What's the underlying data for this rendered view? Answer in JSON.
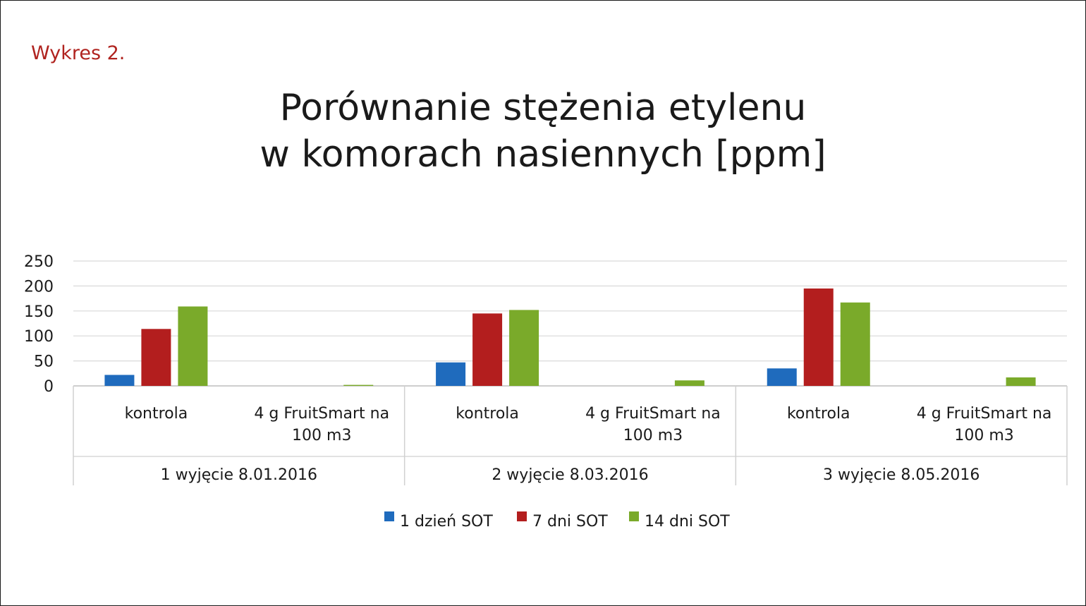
{
  "figure_label": "Wykres 2.",
  "chart_data": {
    "type": "bar",
    "title_lines": [
      "Porównanie stężenia etylenu",
      "w komorach nasiennych [ppm]"
    ],
    "xlabel": "",
    "ylabel": "",
    "ylim": [
      0,
      250
    ],
    "yticks": [
      0,
      50,
      100,
      150,
      200,
      250
    ],
    "grid": true,
    "legend_position": "bottom",
    "groups": [
      "1 wyjęcie 8.01.2016",
      "2 wyjęcie 8.03.2016",
      "3 wyjęcie 8.05.2016"
    ],
    "categories": [
      {
        "group": "1 wyjęcie 8.01.2016",
        "label_lines": [
          "kontrola"
        ]
      },
      {
        "group": "1 wyjęcie 8.01.2016",
        "label_lines": [
          "4 g FruitSmart na",
          "100 m3"
        ]
      },
      {
        "group": "2 wyjęcie 8.03.2016",
        "label_lines": [
          "kontrola"
        ]
      },
      {
        "group": "2 wyjęcie 8.03.2016",
        "label_lines": [
          "4 g FruitSmart na",
          "100 m3"
        ]
      },
      {
        "group": "3 wyjęcie 8.05.2016",
        "label_lines": [
          "kontrola"
        ]
      },
      {
        "group": "3 wyjęcie 8.05.2016",
        "label_lines": [
          "4 g FruitSmart na",
          "100 m3"
        ]
      }
    ],
    "series": [
      {
        "name": "1 dzień SOT",
        "color": "#1f6bbd",
        "values": [
          22,
          0,
          47,
          0,
          35,
          0
        ]
      },
      {
        "name": "7 dni SOT",
        "color": "#b31e1e",
        "values": [
          114,
          0,
          145,
          0,
          195,
          0
        ]
      },
      {
        "name": "14 dni SOT",
        "color": "#7aaa2a",
        "values": [
          159,
          2,
          152,
          11,
          167,
          17
        ]
      }
    ]
  }
}
